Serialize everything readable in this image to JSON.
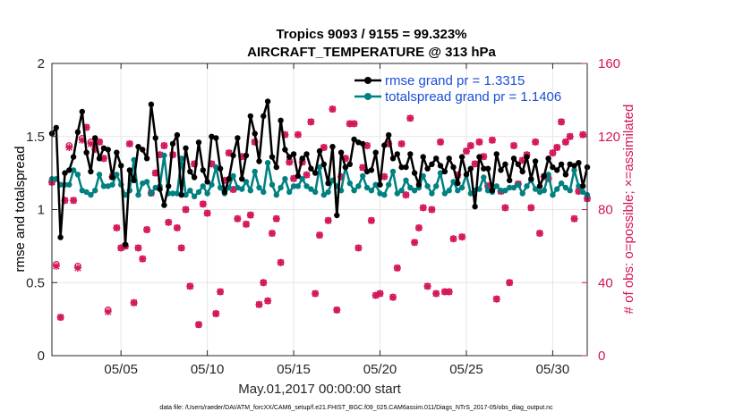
{
  "chart_data": {
    "type": "line",
    "title_line1": "Tropics 9093 / 9155 = 99.323%",
    "title_line2": "AIRCRAFT_TEMPERATURE @ 313 hPa",
    "xlabel": "May.01,2017 00:00:00 start",
    "ylabel_left": "rmse and totalspread",
    "ylabel_right": "# of obs: o=possible; ×=assimilated",
    "footnote": "data file: /Users/raeder/DAI/ATM_forcXX/CAM6_setup/f.e21.FHIST_BGC.f09_025.CAM6assim.011/Diags_NTrS_2017-05/obs_diag_output.nc",
    "xlim": [
      1,
      32
    ],
    "ylim_left": [
      0,
      2
    ],
    "ylim_right": [
      0,
      160
    ],
    "x_tick_values": [
      5,
      10,
      15,
      20,
      25,
      30
    ],
    "x_tick_labels": [
      "05/05",
      "05/10",
      "05/15",
      "05/20",
      "05/25",
      "05/30"
    ],
    "y_left_tick_labels": [
      "0",
      "0.5",
      "1",
      "1.5",
      "2"
    ],
    "y_right_tick_labels": [
      "0",
      "40",
      "80",
      "120",
      "160"
    ],
    "grid": true,
    "legend_position": "top-right",
    "colors": {
      "rmse": "#000000",
      "totalspread": "#008080",
      "obs": "#d4145a",
      "grid": "#e6e6e6",
      "axis": "#262626"
    },
    "series": [
      {
        "name": "rmse grand pr = 1.3315",
        "axis": "left",
        "x_start": 1.0,
        "x_step": 0.25,
        "values": [
          1.52,
          1.56,
          0.81,
          1.25,
          1.27,
          1.36,
          1.53,
          1.67,
          1.39,
          1.26,
          1.49,
          1.35,
          1.42,
          1.41,
          1.22,
          1.39,
          1.3,
          0.76,
          1.27,
          1.2,
          1.43,
          1.41,
          1.35,
          1.72,
          1.49,
          1.14,
          1.03,
          1.16,
          1.45,
          1.51,
          1.1,
          1.42,
          1.26,
          1.22,
          1.46,
          1.27,
          1.19,
          1.5,
          1.49,
          1.28,
          1.12,
          1.21,
          1.37,
          1.49,
          1.21,
          1.37,
          1.64,
          1.52,
          1.33,
          1.64,
          1.74,
          1.36,
          1.29,
          1.61,
          1.41,
          1.36,
          1.38,
          1.23,
          1.35,
          1.38,
          1.28,
          1.25,
          1.4,
          1.31,
          1.18,
          1.43,
          0.96,
          1.39,
          1.29,
          1.31,
          1.48,
          1.46,
          1.45,
          1.26,
          1.27,
          1.39,
          1.17,
          1.44,
          1.51,
          1.35,
          1.38,
          1.29,
          1.29,
          1.38,
          1.25,
          1.17,
          1.36,
          1.28,
          1.31,
          1.35,
          1.3,
          1.26,
          1.35,
          1.29,
          1.18,
          1.36,
          1.24,
          1.28,
          1.02,
          1.36,
          1.28,
          1.28,
          1.13,
          1.38,
          1.27,
          1.31,
          1.2,
          1.35,
          1.31,
          1.26,
          1.36,
          1.21,
          1.33,
          1.16,
          1.23,
          1.35,
          1.29,
          1.27,
          1.31,
          1.24,
          1.31,
          1.3,
          1.32,
          1.16,
          1.29
        ]
      },
      {
        "name": "totalspread grand pr = 1.1406",
        "axis": "left",
        "x_start": 1.0,
        "x_step": 0.25,
        "values": [
          1.21,
          1.21,
          1.17,
          1.17,
          1.17,
          1.27,
          1.24,
          1.13,
          1.12,
          1.1,
          1.13,
          1.24,
          1.16,
          1.16,
          1.17,
          1.24,
          1.17,
          1.1,
          1.13,
          1.34,
          1.1,
          1.18,
          1.19,
          1.11,
          1.15,
          1.16,
          1.37,
          1.11,
          1.11,
          1.11,
          1.35,
          1.1,
          1.13,
          1.09,
          1.12,
          1.16,
          1.11,
          1.17,
          1.29,
          1.15,
          1.11,
          1.15,
          1.23,
          1.15,
          1.14,
          1.19,
          1.13,
          1.26,
          1.15,
          1.12,
          1.32,
          1.17,
          1.1,
          1.15,
          1.21,
          1.12,
          1.16,
          1.16,
          1.21,
          1.16,
          1.14,
          1.12,
          1.29,
          1.1,
          1.12,
          1.2,
          1.16,
          1.13,
          1.29,
          1.18,
          1.13,
          1.16,
          1.23,
          1.15,
          1.13,
          1.17,
          1.11,
          1.1,
          1.17,
          1.26,
          1.11,
          1.13,
          1.2,
          1.15,
          1.13,
          1.15,
          1.23,
          1.16,
          1.11,
          1.16,
          1.25,
          1.11,
          1.13,
          1.19,
          1.13,
          1.15,
          1.24,
          1.11,
          1.13,
          1.14,
          1.22,
          1.13,
          1.12,
          1.16,
          1.13,
          1.13,
          1.15,
          1.15,
          1.17,
          1.11,
          1.16,
          1.2,
          1.14,
          1.12,
          1.13,
          1.24,
          1.1,
          1.14,
          1.18,
          1.15,
          1.13,
          1.27,
          1.16,
          1.12,
          1.1
        ]
      }
    ],
    "obs_count": {
      "name": "# of obs",
      "axis": "right",
      "x_start": 1.0,
      "x_step": 0.25,
      "possible": [
        95,
        50,
        21,
        85,
        115,
        85,
        49,
        119,
        125,
        117,
        113,
        117,
        108,
        25,
        98,
        70,
        59,
        60,
        116,
        29,
        59,
        53,
        69,
        89,
        100,
        110,
        115,
        73,
        110,
        70,
        59,
        80,
        38,
        105,
        17,
        83,
        78,
        105,
        23,
        35,
        96,
        111,
        91,
        75,
        109,
        72,
        77,
        117,
        28,
        40,
        30,
        67,
        75,
        51,
        121,
        106,
        97,
        121,
        106,
        99,
        128,
        34,
        66,
        114,
        74,
        135,
        25,
        98,
        108,
        127,
        127,
        59,
        103,
        115,
        74,
        33,
        34,
        98,
        116,
        32,
        48,
        116,
        88,
        130,
        62,
        70,
        81,
        38,
        80,
        34,
        117,
        35,
        35,
        64,
        99,
        65,
        112,
        115,
        105,
        117,
        109,
        93,
        118,
        31,
        90,
        81,
        40,
        115,
        94,
        107,
        110,
        81,
        117,
        67,
        98,
        97,
        111,
        114,
        128,
        117,
        120,
        75,
        90,
        121,
        86
      ],
      "assimilated": [
        95,
        49,
        21,
        85,
        114,
        85,
        48,
        118,
        125,
        116,
        113,
        117,
        108,
        24,
        98,
        70,
        59,
        60,
        116,
        29,
        59,
        53,
        69,
        89,
        100,
        110,
        115,
        73,
        110,
        70,
        59,
        80,
        38,
        105,
        17,
        83,
        78,
        105,
        23,
        35,
        96,
        111,
        91,
        75,
        109,
        72,
        77,
        117,
        28,
        40,
        30,
        67,
        75,
        51,
        121,
        106,
        97,
        121,
        106,
        99,
        128,
        34,
        66,
        114,
        74,
        135,
        25,
        98,
        108,
        127,
        127,
        59,
        103,
        115,
        74,
        33,
        34,
        98,
        116,
        32,
        48,
        116,
        88,
        130,
        62,
        70,
        81,
        38,
        80,
        34,
        117,
        35,
        35,
        64,
        99,
        65,
        112,
        115,
        105,
        117,
        109,
        93,
        118,
        31,
        90,
        81,
        40,
        115,
        94,
        107,
        110,
        81,
        117,
        67,
        98,
        97,
        111,
        114,
        128,
        117,
        120,
        75,
        90,
        121,
        86
      ]
    }
  }
}
